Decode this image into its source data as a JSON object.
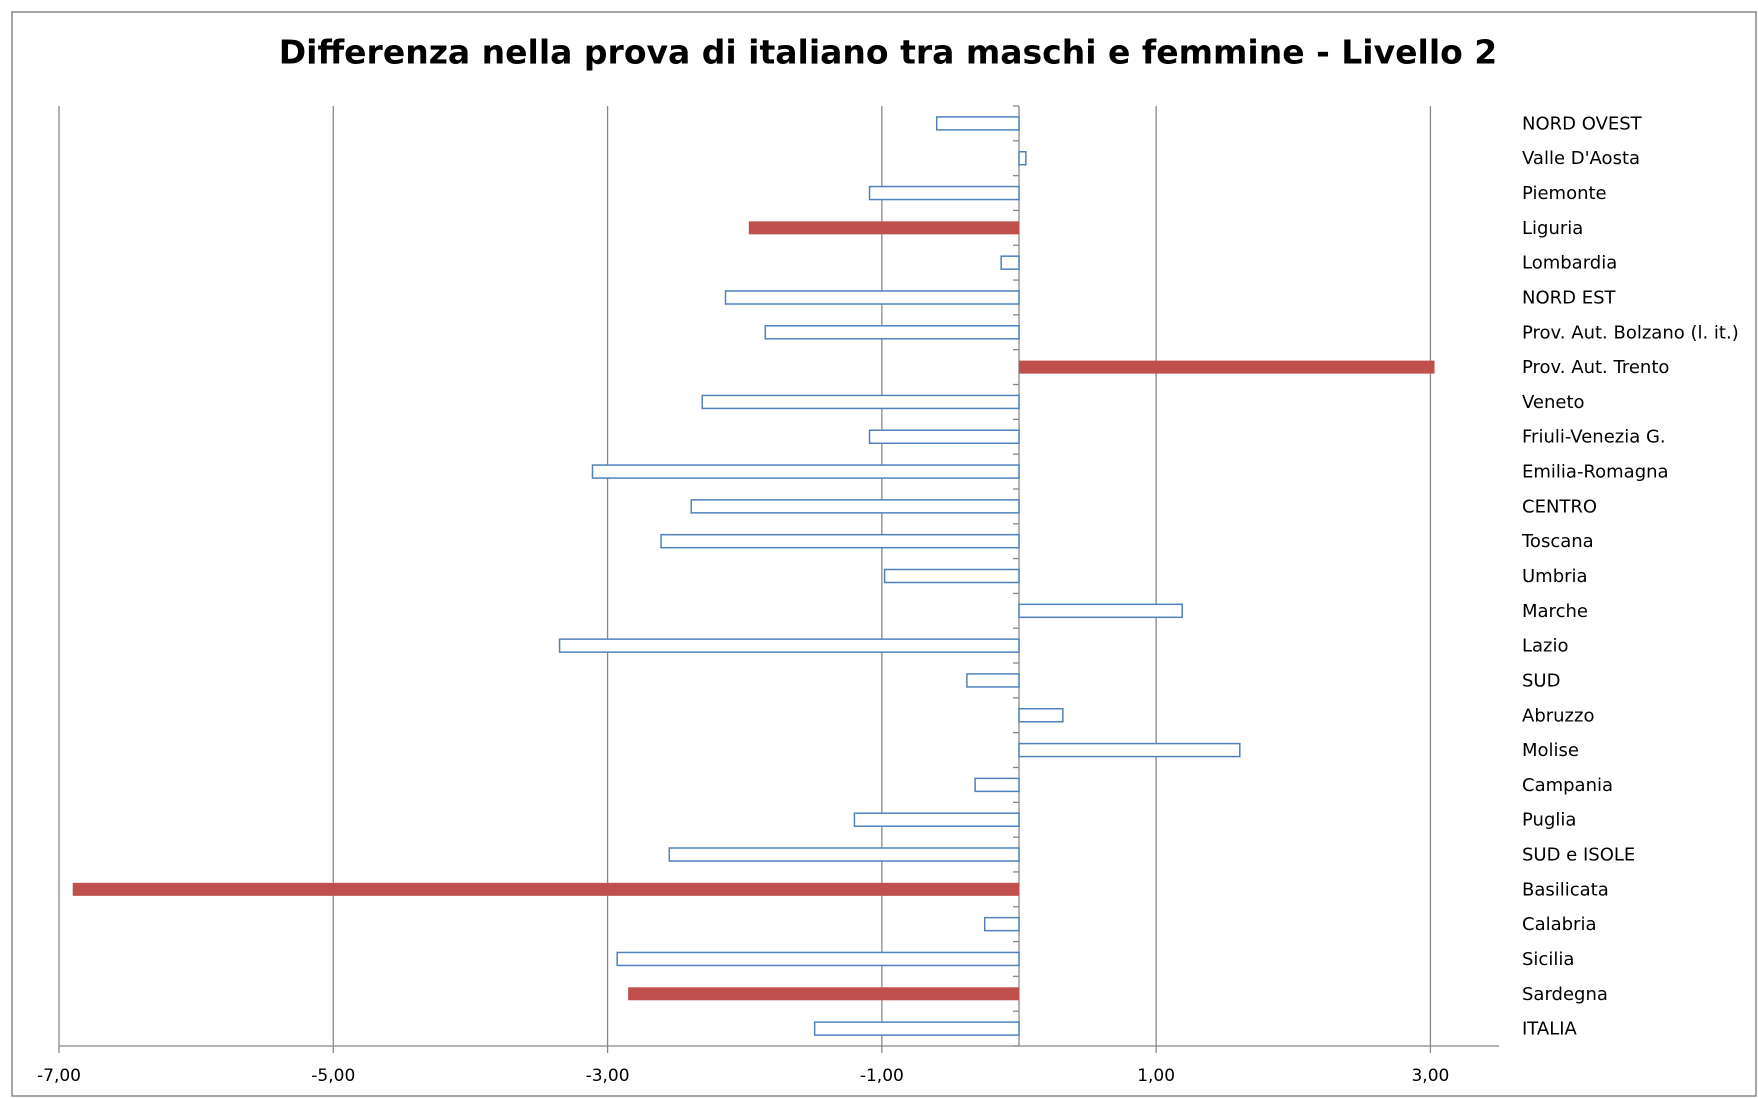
{
  "chart_data": {
    "type": "barh",
    "title": "Differenza nella prova di italiano tra maschi e femmine - Livello 2",
    "categories": [
      "NORD OVEST",
      "Valle D'Aosta",
      "Piemonte",
      "Liguria",
      "Lombardia",
      "NORD EST",
      "Prov. Aut. Bolzano (l. it.)",
      "Prov. Aut. Trento",
      "Veneto",
      "Friuli-Venezia G.",
      "Emilia-Romagna",
      "CENTRO",
      "Toscana",
      "Umbria",
      "Marche",
      "Lazio",
      "SUD",
      "Abruzzo",
      "Molise",
      "Campania",
      "Puglia",
      "SUD e ISOLE",
      "Basilicata",
      "Calabria",
      "Sicilia",
      "Sardegna",
      "ITALIA"
    ],
    "values": [
      -0.6,
      0.05,
      -1.09,
      -1.97,
      -0.13,
      -2.14,
      -1.85,
      3.03,
      -2.31,
      -1.09,
      -3.11,
      -2.39,
      -2.61,
      -0.98,
      1.19,
      -3.35,
      -0.38,
      0.32,
      1.61,
      -0.32,
      -1.2,
      -2.55,
      -6.9,
      -0.25,
      -2.93,
      -2.85,
      -1.49
    ],
    "colors": [
      "#4f81bd",
      "#4f81bd",
      "#4f81bd",
      "#c0504d",
      "#4f81bd",
      "#4f81bd",
      "#4f81bd",
      "#c0504d",
      "#4f81bd",
      "#4f81bd",
      "#4f81bd",
      "#4f81bd",
      "#4f81bd",
      "#4f81bd",
      "#4f81bd",
      "#4f81bd",
      "#4f81bd",
      "#4f81bd",
      "#4f81bd",
      "#4f81bd",
      "#4f81bd",
      "#4f81bd",
      "#c0504d",
      "#4f81bd",
      "#4f81bd",
      "#c0504d",
      "#4f81bd"
    ],
    "outline_color": "#4f81bd",
    "xlim": [
      -7,
      3.5
    ],
    "xticks": [
      {
        "value": -7,
        "label": "-7,00"
      },
      {
        "value": -5,
        "label": "-5,00"
      },
      {
        "value": -3,
        "label": "-3,00"
      },
      {
        "value": -1,
        "label": "-1,00"
      },
      {
        "value": 1,
        "label": "1,00"
      },
      {
        "value": 3,
        "label": "3,00"
      }
    ],
    "grid": true
  }
}
